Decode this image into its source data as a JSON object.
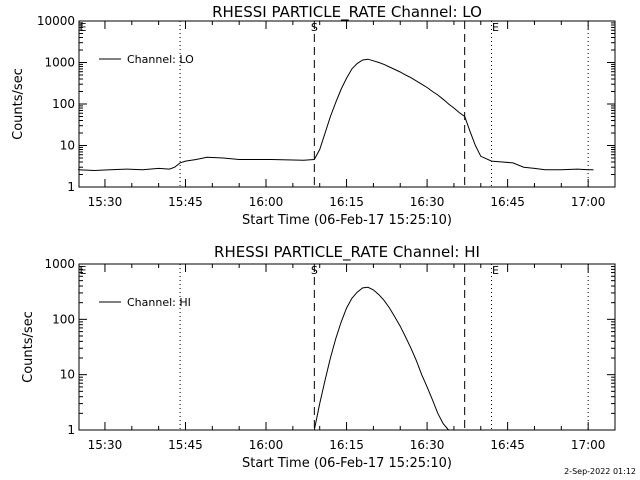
{
  "chart_data": [
    {
      "type": "line",
      "title": "RHESSI PARTICLE_RATE Channel: LO",
      "xlabel": "Start Time (06-Feb-17 15:25:10)",
      "ylabel": "Counts/sec",
      "yscale": "log",
      "ylim": [
        1,
        10000
      ],
      "y_ticks": [
        "1",
        "10",
        "100",
        "1000",
        "10000"
      ],
      "x_ticks": [
        "15:30",
        "15:45",
        "16:00",
        "16:15",
        "16:30",
        "16:45",
        "17:00"
      ],
      "markers": {
        "S": "16:09",
        "E": "16:42",
        "start_dashed": "16:09",
        "end_dashed": "16:37",
        "dotted": [
          "15:44",
          "16:42",
          "17:00"
        ]
      },
      "grid": false,
      "legend_position": "top-left",
      "series": [
        {
          "name": "Channel: LO",
          "x": [
            "15:25",
            "15:28",
            "15:31",
            "15:34",
            "15:37",
            "15:40",
            "15:42",
            "15:43",
            "15:44",
            "15:45",
            "15:47",
            "15:49",
            "15:52",
            "15:55",
            "15:58",
            "16:01",
            "16:04",
            "16:07",
            "16:09",
            "16:10",
            "16:11",
            "16:12",
            "16:13",
            "16:14",
            "16:15",
            "16:16",
            "16:17",
            "16:18",
            "16:19",
            "16:20",
            "16:21",
            "16:22",
            "16:23",
            "16:24",
            "16:25",
            "16:26",
            "16:27",
            "16:28",
            "16:29",
            "16:30",
            "16:31",
            "16:32",
            "16:33",
            "16:34",
            "16:35",
            "16:36",
            "16:37",
            "16:38",
            "16:39",
            "16:40",
            "16:42",
            "16:44",
            "16:46",
            "16:48",
            "16:50",
            "16:52",
            "16:55",
            "16:58",
            "17:00",
            "17:01"
          ],
          "values": [
            2.6,
            2.5,
            2.6,
            2.7,
            2.6,
            2.8,
            2.7,
            3.0,
            3.8,
            4.2,
            4.6,
            5.2,
            5.0,
            4.6,
            4.6,
            4.6,
            4.5,
            4.4,
            4.6,
            8,
            20,
            50,
            110,
            230,
            420,
            700,
            950,
            1150,
            1200,
            1100,
            1000,
            900,
            780,
            680,
            590,
            500,
            430,
            360,
            300,
            250,
            200,
            165,
            130,
            100,
            80,
            62,
            50,
            22,
            10,
            5.5,
            4.2,
            4.0,
            3.8,
            3.0,
            2.8,
            2.6,
            2.6,
            2.7,
            2.6,
            2.6
          ]
        }
      ]
    },
    {
      "type": "line",
      "title": "RHESSI PARTICLE_RATE Channel: HI",
      "xlabel": "Start Time (06-Feb-17 15:25:10)",
      "ylabel": "Counts/sec",
      "yscale": "log",
      "ylim": [
        1,
        1000
      ],
      "y_ticks": [
        "1",
        "10",
        "100",
        "1000"
      ],
      "x_ticks": [
        "15:30",
        "15:45",
        "16:00",
        "16:15",
        "16:30",
        "16:45",
        "17:00"
      ],
      "markers": {
        "S": "16:09",
        "E": "16:42",
        "start_dashed": "16:09",
        "end_dashed": "16:37",
        "dotted": [
          "15:44",
          "16:42",
          "17:00"
        ]
      },
      "grid": false,
      "legend_position": "top-left",
      "series": [
        {
          "name": "Channel: HI",
          "x": [
            "16:09",
            "16:10",
            "16:11",
            "16:12",
            "16:13",
            "16:14",
            "16:15",
            "16:16",
            "16:17",
            "16:18",
            "16:19",
            "16:20",
            "16:21",
            "16:22",
            "16:23",
            "16:24",
            "16:25",
            "16:26",
            "16:27",
            "16:28",
            "16:29",
            "16:30",
            "16:31",
            "16:32",
            "16:33",
            "16:34"
          ],
          "values": [
            1,
            3,
            8,
            20,
            45,
            90,
            160,
            240,
            310,
            370,
            380,
            340,
            280,
            220,
            160,
            110,
            75,
            48,
            30,
            18,
            10,
            6,
            3.5,
            2.0,
            1.3,
            1.0
          ]
        }
      ]
    }
  ],
  "footer_stamp": "2-Sep-2022 01:12"
}
